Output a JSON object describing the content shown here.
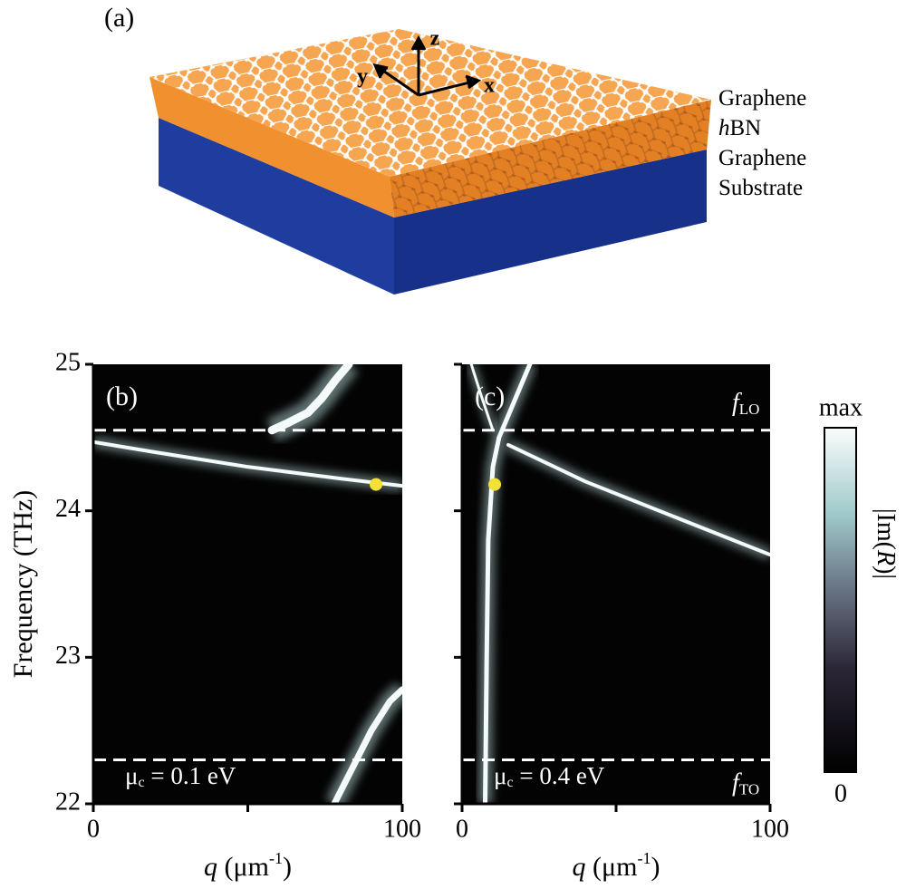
{
  "illustration": {
    "panel": "(a)",
    "axes": [
      "z",
      "y",
      "x"
    ],
    "layers": [
      {
        "text": "Graphene"
      },
      {
        "italic": "h",
        "text": "BN"
      },
      {
        "text": "Graphene"
      },
      {
        "text": "Substrate"
      }
    ]
  },
  "chart_data": [
    {
      "type": "heatmap",
      "title": "(b)",
      "xlim": [
        0,
        100
      ],
      "ylim": [
        22,
        25
      ],
      "xticks": [
        0,
        100
      ],
      "minor_xticks": [
        50
      ],
      "yticks": [
        22,
        23,
        24,
        25
      ],
      "minor_yticks": [
        22,
        23,
        24,
        25
      ],
      "ylabel": "Frequency (THz)",
      "xlabel": {
        "var": "q",
        "unit": " (μm",
        "sup": "-1",
        "close": ")"
      },
      "hlines": [
        24.55,
        22.3
      ],
      "annotation": {
        "symbol": "μ",
        "subscript": "c",
        "text": " = 0.1 eV"
      },
      "marker": {
        "x": 91.5,
        "y": 24.18,
        "color": "#f2e236"
      },
      "curves": [
        {
          "x": [
            57.8,
            63,
            69.5,
            74,
            78.3,
            82.7
          ],
          "y": [
            24.55,
            24.6,
            24.67,
            24.77,
            24.89,
            25
          ],
          "width": 9
        },
        {
          "x": [
            0,
            20,
            50,
            80,
            100
          ],
          "y": [
            24.47,
            24.4,
            24.3,
            24.22,
            24.17
          ],
          "width": 4
        },
        {
          "x": [
            78,
            84,
            90,
            96,
            100
          ],
          "y": [
            22,
            22.25,
            22.5,
            22.7,
            22.78
          ],
          "width": 7
        }
      ]
    },
    {
      "type": "heatmap",
      "title": "(c)",
      "xlim": [
        0,
        100
      ],
      "ylim": [
        22,
        25
      ],
      "xticks": [
        0,
        100
      ],
      "minor_xticks": [
        50
      ],
      "minor_yticks": [
        22,
        23,
        24,
        25
      ],
      "xlabel": {
        "var": "q",
        "unit": " (μm",
        "sup": "-1",
        "close": ")"
      },
      "hlines": [
        24.55,
        22.3
      ],
      "hline_labels": [
        {
          "symbol": "f",
          "subscript": "LO"
        },
        {
          "symbol": "f",
          "subscript": "TO"
        }
      ],
      "annotation": {
        "symbol": "μ",
        "subscript": "c",
        "text": " = 0.4 eV"
      },
      "marker": {
        "x": 10.6,
        "y": 24.18,
        "color": "#f2e236"
      },
      "curves": [
        {
          "x": [
            7.5,
            8,
            8.5,
            10,
            12,
            14,
            18,
            22
          ],
          "y": [
            22,
            23,
            23.8,
            24.3,
            24.5,
            24.6,
            24.8,
            25
          ],
          "width": 5
        },
        {
          "x": [
            10,
            6,
            3
          ],
          "y": [
            24.55,
            24.8,
            25
          ],
          "width": 3
        },
        {
          "x": [
            15,
            40,
            70,
            100
          ],
          "y": [
            24.45,
            24.2,
            23.95,
            23.7
          ],
          "width": 4
        }
      ]
    }
  ],
  "colorbar": {
    "max_label": "max",
    "min_label": "0",
    "label": {
      "pre": "|Im(",
      "italic": "R",
      "post": ")|"
    }
  }
}
